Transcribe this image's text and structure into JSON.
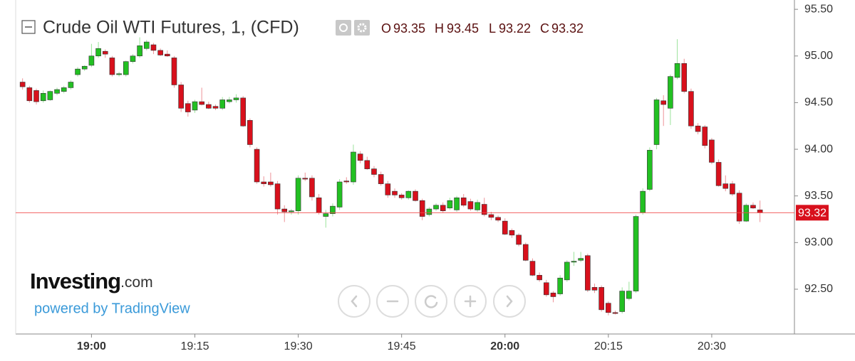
{
  "chart_data": {
    "type": "candlestick",
    "title": "Crude Oil WTI Futures, 1, (CFD)",
    "ohlc_labels": [
      "O",
      "H",
      "L",
      "C"
    ],
    "up_color": "#22c022",
    "down_color": "#d8101c",
    "price_line_color": "#f04a4a",
    "x": [
      "18:50",
      "18:51",
      "18:52",
      "18:53",
      "18:54",
      "18:55",
      "18:56",
      "18:57",
      "18:58",
      "18:59",
      "19:00",
      "19:01",
      "19:02",
      "19:03",
      "19:04",
      "19:05",
      "19:06",
      "19:07",
      "19:08",
      "19:09",
      "19:10",
      "19:11",
      "19:12",
      "19:13",
      "19:14",
      "19:15",
      "19:16",
      "19:17",
      "19:18",
      "19:19",
      "19:20",
      "19:21",
      "19:22",
      "19:23",
      "19:24",
      "19:25",
      "19:26",
      "19:27",
      "19:28",
      "19:29",
      "19:30",
      "19:31",
      "19:32",
      "19:33",
      "19:34",
      "19:35",
      "19:36",
      "19:37",
      "19:38",
      "19:39",
      "19:40",
      "19:41",
      "19:42",
      "19:43",
      "19:44",
      "19:45",
      "19:46",
      "19:47",
      "19:48",
      "19:49",
      "19:50",
      "19:51",
      "19:52",
      "19:53",
      "19:54",
      "19:55",
      "19:56",
      "19:57",
      "19:58",
      "19:59",
      "20:00",
      "20:01",
      "20:02",
      "20:03",
      "20:04",
      "20:05",
      "20:06",
      "20:07",
      "20:08",
      "20:09",
      "20:10",
      "20:11",
      "20:12",
      "20:13",
      "20:14",
      "20:15",
      "20:16",
      "20:17",
      "20:18",
      "20:19",
      "20:20",
      "20:21",
      "20:22",
      "20:23",
      "20:24",
      "20:25",
      "20:26",
      "20:27",
      "20:28",
      "20:29",
      "20:30",
      "20:31",
      "20:32",
      "20:33",
      "20:34",
      "20:35",
      "20:36",
      "20:37"
    ],
    "series": [
      {
        "open": [
          94.72,
          94.66,
          94.63,
          94.52,
          94.53,
          94.6,
          94.62,
          94.66,
          94.8,
          94.86,
          94.9,
          95.0,
          95.05,
          94.98,
          94.8,
          94.8,
          94.94,
          95.0,
          95.08,
          95.12,
          95.06,
          95.02,
          94.98,
          94.69,
          94.49,
          94.42,
          94.51,
          94.48,
          94.46,
          94.44,
          94.51,
          94.53,
          94.55,
          94.31,
          94.0,
          93.65,
          93.65,
          93.63,
          93.36,
          93.33,
          93.34,
          93.69,
          93.69,
          93.48,
          93.28,
          93.31,
          93.38,
          93.66,
          93.65,
          93.95,
          93.88,
          93.79,
          93.73,
          93.63,
          93.55,
          93.51,
          93.48,
          93.55,
          93.45,
          93.3,
          93.36,
          93.4,
          93.37,
          93.35,
          93.48,
          93.44,
          93.35,
          93.41,
          93.3,
          93.27,
          93.23,
          93.13,
          93.08,
          92.98,
          92.8,
          92.65,
          92.57,
          92.46,
          92.45,
          92.6,
          92.79,
          92.81,
          92.86,
          92.52,
          92.52,
          92.35,
          92.25,
          92.26,
          92.4,
          92.48,
          93.32,
          93.57,
          94.05,
          94.52,
          94.44,
          94.77,
          94.92,
          94.62,
          94.25,
          94.24,
          94.1,
          93.86,
          93.63,
          93.63,
          93.53,
          93.23,
          93.4,
          93.35
        ],
        "high": [
          94.76,
          94.68,
          94.65,
          94.63,
          94.63,
          94.66,
          94.68,
          94.74,
          94.88,
          94.9,
          95.13,
          95.15,
          95.07,
          95.0,
          94.83,
          94.95,
          95.02,
          95.2,
          95.17,
          95.14,
          95.08,
          95.06,
          95.0,
          94.72,
          94.52,
          94.53,
          94.66,
          94.51,
          94.48,
          94.56,
          94.56,
          94.59,
          94.57,
          94.33,
          94.02,
          93.71,
          93.75,
          93.66,
          93.4,
          93.36,
          93.72,
          93.75,
          93.72,
          93.52,
          93.35,
          93.42,
          93.68,
          93.7,
          94.05,
          93.98,
          93.92,
          93.82,
          93.76,
          93.66,
          93.58,
          93.53,
          93.56,
          93.57,
          93.47,
          93.38,
          93.42,
          93.43,
          93.48,
          93.5,
          93.52,
          93.47,
          93.46,
          93.48,
          93.33,
          93.29,
          93.26,
          93.15,
          93.1,
          93.0,
          92.83,
          92.68,
          92.6,
          92.48,
          92.65,
          92.81,
          92.9,
          92.9,
          92.88,
          92.56,
          92.54,
          92.37,
          92.27,
          92.52,
          92.58,
          93.3,
          93.58,
          94.02,
          94.55,
          94.58,
          94.8,
          95.18,
          94.97,
          94.65,
          94.28,
          94.26,
          94.12,
          93.89,
          93.72,
          93.66,
          93.56,
          93.42,
          93.43,
          93.45
        ],
        "low": [
          94.64,
          94.5,
          94.48,
          94.5,
          94.52,
          94.58,
          94.6,
          94.64,
          94.78,
          94.84,
          94.88,
          94.98,
          94.98,
          94.78,
          94.78,
          94.78,
          94.92,
          94.98,
          95.06,
          95.02,
          95.0,
          94.99,
          94.66,
          94.4,
          94.35,
          94.39,
          94.47,
          94.43,
          94.42,
          94.42,
          94.49,
          94.5,
          94.24,
          94.02,
          93.63,
          93.6,
          93.6,
          93.3,
          93.22,
          93.3,
          93.3,
          93.66,
          93.45,
          93.3,
          93.16,
          93.28,
          93.35,
          93.63,
          93.62,
          93.85,
          93.78,
          93.7,
          93.61,
          93.48,
          93.48,
          93.46,
          93.46,
          93.44,
          93.24,
          93.28,
          93.34,
          93.32,
          93.35,
          93.33,
          93.38,
          93.34,
          93.33,
          93.28,
          93.24,
          93.22,
          93.08,
          93.05,
          92.96,
          92.8,
          92.64,
          92.58,
          92.42,
          92.36,
          92.43,
          92.58,
          92.75,
          92.79,
          92.47,
          92.46,
          92.26,
          92.22,
          92.23,
          92.24,
          92.38,
          92.46,
          93.3,
          93.55,
          94.0,
          94.25,
          94.26,
          94.75,
          94.6,
          94.22,
          94.16,
          94.01,
          93.84,
          93.6,
          93.55,
          93.5,
          93.2,
          93.22,
          93.36,
          93.22
        ],
        "close": [
          94.67,
          94.52,
          94.51,
          94.6,
          94.62,
          94.64,
          94.66,
          94.72,
          94.86,
          94.89,
          95.0,
          95.08,
          95.02,
          94.8,
          94.81,
          94.94,
          95.0,
          95.11,
          95.15,
          95.06,
          95.01,
          95.0,
          94.69,
          94.44,
          94.4,
          94.51,
          94.48,
          94.44,
          94.44,
          94.53,
          94.53,
          94.55,
          94.25,
          94.05,
          93.65,
          93.63,
          93.62,
          93.36,
          93.33,
          93.34,
          93.69,
          93.68,
          93.49,
          93.32,
          93.31,
          93.39,
          93.65,
          93.65,
          93.97,
          93.88,
          93.79,
          93.73,
          93.63,
          93.51,
          93.51,
          93.48,
          93.55,
          93.45,
          93.28,
          93.36,
          93.4,
          93.34,
          93.45,
          93.48,
          93.4,
          93.36,
          93.43,
          93.3,
          93.27,
          93.24,
          93.09,
          93.08,
          92.98,
          92.81,
          92.65,
          92.6,
          92.44,
          92.42,
          92.62,
          92.79,
          92.8,
          92.83,
          92.49,
          92.49,
          92.28,
          92.25,
          92.24,
          92.48,
          92.48,
          93.28,
          93.55,
          93.99,
          94.53,
          94.48,
          94.78,
          94.92,
          94.62,
          94.25,
          94.19,
          94.04,
          93.86,
          93.61,
          93.58,
          93.52,
          93.23,
          93.4,
          93.37,
          93.32
        ]
      }
    ],
    "ylim": [
      92.02,
      95.6
    ],
    "yticks": [
      {
        "value": 92.5,
        "label": "92.50"
      },
      {
        "value": 93,
        "label": "93.00"
      },
      {
        "value": 93.5,
        "label": "93.50"
      },
      {
        "value": 94,
        "label": "94.00"
      },
      {
        "value": 94.5,
        "label": "94.50"
      },
      {
        "value": 95,
        "label": "95.00"
      },
      {
        "value": 95.5,
        "label": "95.50"
      }
    ],
    "xlim": [
      "18:49",
      "20:42"
    ],
    "xticks": [
      "19:00",
      "19:15",
      "19:30",
      "19:45",
      "20:00",
      "20:15",
      "20:30"
    ]
  },
  "watermark": {
    "brand": "Investing",
    "domain": ".com",
    "powered_by": "powered by TradingView"
  }
}
